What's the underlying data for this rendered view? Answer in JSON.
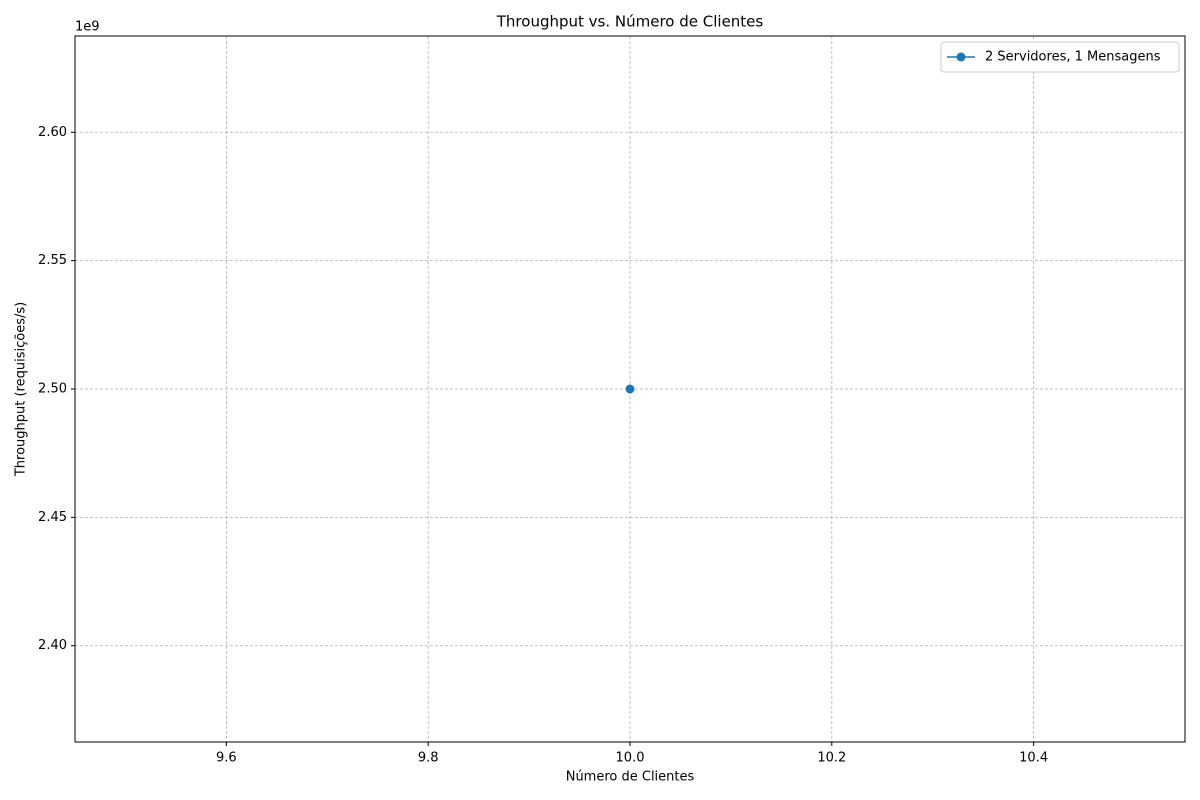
{
  "chart_data": {
    "type": "line",
    "title": "Throughput vs. Número de Clientes",
    "x_label": "Número de Clientes",
    "y_label": "Throughput (requisições/s)",
    "y_offset_label": "1e9",
    "x": [
      10
    ],
    "series": [
      {
        "name": "2 Servidores, 1 Mensagens",
        "color": "#1f77b4",
        "values": [
          2.5
        ]
      }
    ],
    "xlim": [
      9.45,
      10.55
    ],
    "xticks": [
      9.6,
      9.8,
      {
        "value": 10.0,
        "label": "10.0"
      },
      10.2,
      10.4
    ],
    "ylim": [
      2.3625,
      2.6375
    ],
    "yticks": [
      {
        "value": 2.4,
        "label": "2.40"
      },
      {
        "value": 2.45,
        "label": "2.45"
      },
      {
        "value": 2.5,
        "label": "2.50"
      },
      {
        "value": 2.55,
        "label": "2.55"
      },
      {
        "value": 2.6,
        "label": "2.60"
      }
    ],
    "grid": true,
    "legend": "upper right"
  }
}
